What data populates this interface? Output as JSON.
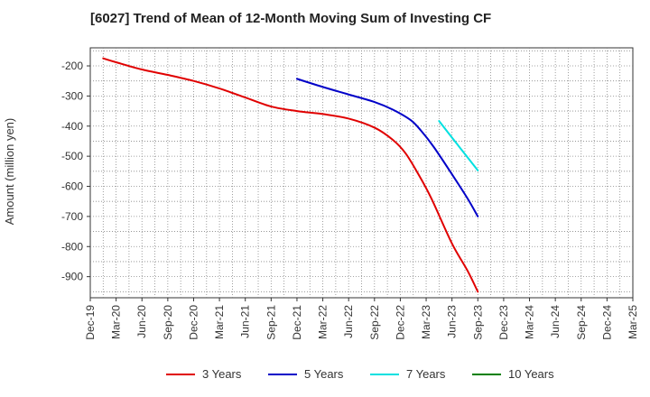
{
  "chart_data": {
    "type": "line",
    "title": "[6027]  Trend of Mean of 12-Month Moving Sum of Investing CF",
    "xlabel": "",
    "ylabel": "Amount (million yen)",
    "ylim": [
      -970,
      -140
    ],
    "yticks": [
      -200,
      -300,
      -400,
      -500,
      -600,
      -700,
      -800,
      -900
    ],
    "grid": true,
    "legend_position": "bottom",
    "categories": [
      "Dec-19",
      "Mar-20",
      "Jun-20",
      "Sep-20",
      "Dec-20",
      "Mar-21",
      "Jun-21",
      "Sep-21",
      "Dec-21",
      "Mar-22",
      "Jun-22",
      "Sep-22",
      "Dec-22",
      "Mar-23",
      "Jun-23",
      "Sep-23",
      "Dec-23",
      "Mar-24",
      "Jun-24",
      "Sep-24",
      "Dec-24",
      "Mar-25"
    ],
    "series": [
      {
        "name": "3 Years",
        "color": "#e00000",
        "points": [
          [
            0.5,
            -175
          ],
          [
            1,
            -188
          ],
          [
            2,
            -212
          ],
          [
            3,
            -230
          ],
          [
            4,
            -250
          ],
          [
            5,
            -275
          ],
          [
            6,
            -305
          ],
          [
            7,
            -335
          ],
          [
            8,
            -350
          ],
          [
            9,
            -360
          ],
          [
            10,
            -375
          ],
          [
            11,
            -405
          ],
          [
            11.7,
            -445
          ],
          [
            12.2,
            -490
          ],
          [
            12.7,
            -560
          ],
          [
            13.2,
            -640
          ],
          [
            14,
            -790
          ],
          [
            14.6,
            -880
          ],
          [
            15,
            -950
          ]
        ]
      },
      {
        "name": "5 Years",
        "color": "#0000c8",
        "points": [
          [
            8,
            -243
          ],
          [
            9,
            -270
          ],
          [
            10,
            -295
          ],
          [
            11,
            -320
          ],
          [
            11.7,
            -345
          ],
          [
            12.4,
            -380
          ],
          [
            12.8,
            -415
          ],
          [
            13.3,
            -470
          ],
          [
            14,
            -560
          ],
          [
            14.6,
            -640
          ],
          [
            15,
            -700
          ]
        ]
      },
      {
        "name": "7 Years",
        "color": "#00e0e0",
        "points": [
          [
            13.5,
            -383
          ],
          [
            14.2,
            -460
          ],
          [
            15,
            -547
          ]
        ]
      },
      {
        "name": "10 Years",
        "color": "#008000",
        "points": []
      }
    ]
  }
}
